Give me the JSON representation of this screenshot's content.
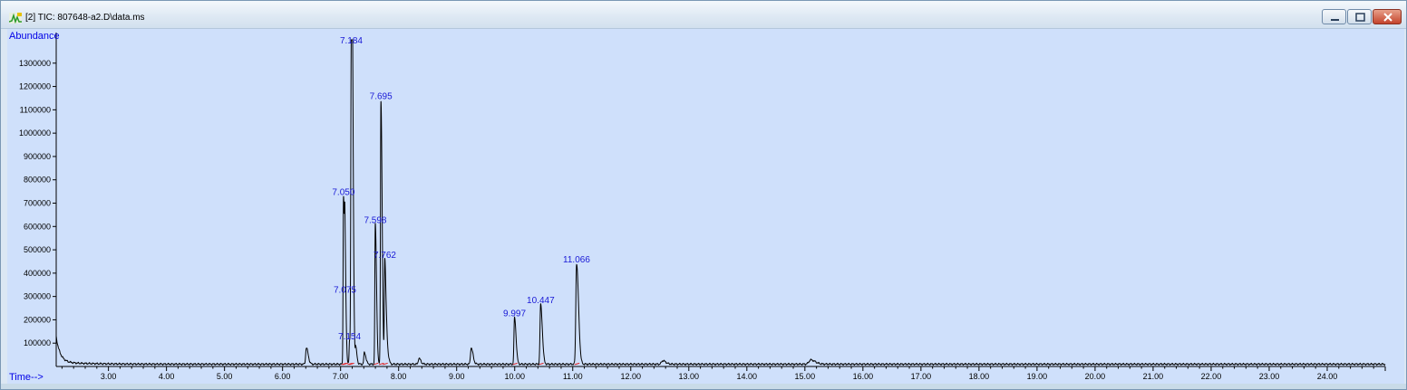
{
  "window": {
    "title": "[2] TIC: 807648-a2.D\\data.ms",
    "icon": "chromatogram-icon",
    "controls": [
      "minimize",
      "maximize",
      "close"
    ]
  },
  "chart_data": {
    "type": "line",
    "xlabel": "Time-->",
    "ylabel": "Abundance",
    "xlim": [
      2.1,
      25.0
    ],
    "ylim": [
      0,
      1400000
    ],
    "xticks": [
      "3.00",
      "4.00",
      "5.00",
      "6.00",
      "7.00",
      "8.00",
      "9.00",
      "10.00",
      "11.00",
      "12.00",
      "13.00",
      "14.00",
      "15.00",
      "16.00",
      "17.00",
      "18.00",
      "19.00",
      "20.00",
      "21.00",
      "22.00",
      "23.00",
      "24.00"
    ],
    "yticks": [
      "100000",
      "200000",
      "300000",
      "400000",
      "500000",
      "600000",
      "700000",
      "800000",
      "900000",
      "1000000",
      "1100000",
      "1200000",
      "1300000"
    ],
    "series": [
      {
        "baseline": 10000,
        "peaks": [
          {
            "x": 6.41,
            "y": 70000,
            "w": 0.012
          },
          {
            "x": 7.05,
            "y": 720000,
            "w": 0.007
          },
          {
            "x": 7.075,
            "y": 380000,
            "w": 0.007
          },
          {
            "x": 7.154,
            "y": 100000,
            "w": 0.007
          },
          {
            "x": 7.184,
            "y": 1380000,
            "w": 0.008
          },
          {
            "x": 7.205,
            "y": 700000,
            "w": 0.007
          },
          {
            "x": 7.26,
            "y": 70000,
            "w": 0.008
          },
          {
            "x": 7.41,
            "y": 50000,
            "w": 0.01
          },
          {
            "x": 7.598,
            "y": 600000,
            "w": 0.008
          },
          {
            "x": 7.695,
            "y": 1130000,
            "w": 0.008
          },
          {
            "x": 7.762,
            "y": 450000,
            "w": 0.008
          },
          {
            "x": 7.8,
            "y": 60000,
            "w": 0.01
          },
          {
            "x": 8.35,
            "y": 25000,
            "w": 0.012
          },
          {
            "x": 9.25,
            "y": 70000,
            "w": 0.012
          },
          {
            "x": 9.997,
            "y": 200000,
            "w": 0.01
          },
          {
            "x": 10.447,
            "y": 255000,
            "w": 0.011
          },
          {
            "x": 11.066,
            "y": 430000,
            "w": 0.013
          },
          {
            "x": 12.55,
            "y": 15000,
            "w": 0.02
          },
          {
            "x": 15.1,
            "y": 18000,
            "w": 0.03
          }
        ]
      }
    ],
    "peak_labels": [
      {
        "x": 7.184,
        "y": 1380000,
        "label": "7.184"
      },
      {
        "x": 7.695,
        "y": 1130000,
        "label": "7.695"
      },
      {
        "x": 7.05,
        "y": 720000,
        "label": "7.050"
      },
      {
        "x": 7.598,
        "y": 600000,
        "label": "7.598"
      },
      {
        "x": 7.762,
        "y": 450000,
        "label": "7.762"
      },
      {
        "x": 7.075,
        "y": 300000,
        "label": "7.075"
      },
      {
        "x": 7.154,
        "y": 100000,
        "label": "7.154"
      },
      {
        "x": 9.997,
        "y": 200000,
        "label": "9.997"
      },
      {
        "x": 10.447,
        "y": 255000,
        "label": "10.447"
      },
      {
        "x": 11.066,
        "y": 430000,
        "label": "11.066"
      }
    ],
    "colors": {
      "trace": "#000000",
      "integration": "#e02020",
      "labels": "#1a1ad6",
      "background": "#cfe0fb"
    }
  }
}
